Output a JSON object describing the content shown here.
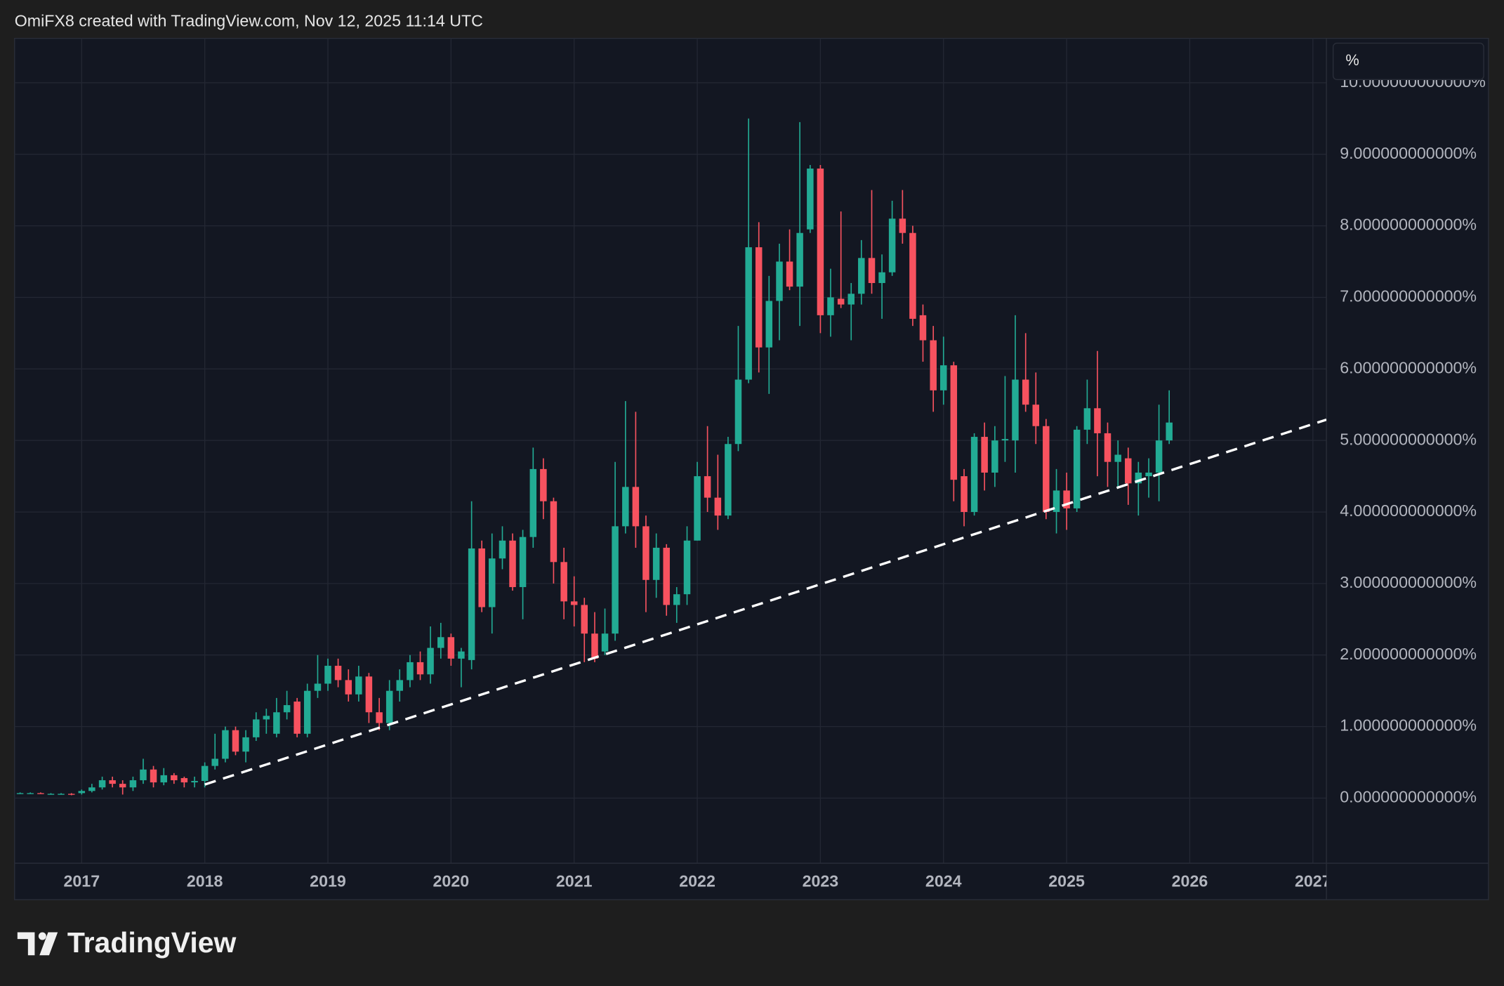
{
  "header": "OmiFX8 created with TradingView.com, Nov 12, 2025 11:14 UTC",
  "scale_button": "%",
  "brand": "TradingView",
  "chart_data": {
    "type": "candlestick",
    "up_color": "#22ab94",
    "down_color": "#f7525f",
    "grid": true,
    "xlim": [
      2016.455,
      2027.11
    ],
    "xticks": [
      2017,
      2018,
      2019,
      2020,
      2021,
      2022,
      2023,
      2024,
      2025,
      2026,
      2027
    ],
    "ylim": [
      -0.91,
      10.62
    ],
    "yticks": [
      {
        "value": 0,
        "label": "0.000000000000%"
      },
      {
        "value": 1,
        "label": "1.000000000000%"
      },
      {
        "value": 2,
        "label": "2.000000000000%"
      },
      {
        "value": 3,
        "label": "3.000000000000%"
      },
      {
        "value": 4,
        "label": "4.000000000000%"
      },
      {
        "value": 5,
        "label": "5.000000000000%"
      },
      {
        "value": 6,
        "label": "6.000000000000%"
      },
      {
        "value": 7,
        "label": "7.000000000000%"
      },
      {
        "value": 8,
        "label": "8.000000000000%"
      },
      {
        "value": 9,
        "label": "9.000000000000%"
      },
      {
        "value": 10,
        "label": "10.000000000000%"
      }
    ],
    "x": [
      2016.5,
      2016.583,
      2016.667,
      2016.75,
      2016.833,
      2016.917,
      2017.0,
      2017.083,
      2017.167,
      2017.25,
      2017.333,
      2017.417,
      2017.5,
      2017.583,
      2017.667,
      2017.75,
      2017.833,
      2017.917,
      2018.0,
      2018.083,
      2018.167,
      2018.25,
      2018.333,
      2018.417,
      2018.5,
      2018.583,
      2018.667,
      2018.75,
      2018.833,
      2018.917,
      2019.0,
      2019.083,
      2019.167,
      2019.25,
      2019.333,
      2019.417,
      2019.5,
      2019.583,
      2019.667,
      2019.75,
      2019.833,
      2019.917,
      2020.0,
      2020.083,
      2020.167,
      2020.25,
      2020.333,
      2020.417,
      2020.5,
      2020.583,
      2020.667,
      2020.75,
      2020.833,
      2020.917,
      2021.0,
      2021.083,
      2021.167,
      2021.25,
      2021.333,
      2021.417,
      2021.5,
      2021.583,
      2021.667,
      2021.75,
      2021.833,
      2021.917,
      2022.0,
      2022.083,
      2022.167,
      2022.25,
      2022.333,
      2022.417,
      2022.5,
      2022.583,
      2022.667,
      2022.75,
      2022.833,
      2022.917,
      2023.0,
      2023.083,
      2023.167,
      2023.25,
      2023.333,
      2023.417,
      2023.5,
      2023.583,
      2023.667,
      2023.75,
      2023.833,
      2023.917,
      2024.0,
      2024.083,
      2024.167,
      2024.25,
      2024.333,
      2024.417,
      2024.5,
      2024.583,
      2024.667,
      2024.75,
      2024.833,
      2024.917,
      2025.0,
      2025.083,
      2025.167,
      2025.25,
      2025.333,
      2025.417,
      2025.5,
      2025.583,
      2025.667,
      2025.75,
      2025.833
    ],
    "open": [
      0.07,
      0.07,
      0.07,
      0.06,
      0.06,
      0.06,
      0.07,
      0.1,
      0.15,
      0.25,
      0.2,
      0.15,
      0.25,
      0.4,
      0.22,
      0.32,
      0.28,
      0.22,
      0.24,
      0.45,
      0.55,
      0.95,
      0.65,
      0.85,
      1.1,
      0.9,
      1.2,
      1.35,
      0.9,
      1.5,
      1.6,
      1.85,
      1.65,
      1.45,
      1.7,
      1.2,
      1.05,
      1.5,
      1.65,
      1.9,
      1.73,
      2.1,
      2.25,
      1.95,
      1.93,
      3.49,
      2.67,
      3.35,
      3.6,
      2.95,
      3.65,
      4.6,
      4.15,
      3.3,
      2.75,
      2.7,
      2.3,
      2.05,
      2.3,
      3.8,
      4.35,
      3.8,
      3.05,
      3.5,
      2.7,
      2.85,
      3.6,
      4.5,
      4.2,
      3.95,
      4.95,
      5.85,
      7.7,
      6.3,
      6.95,
      7.5,
      7.15,
      7.95,
      8.8,
      6.75,
      6.98,
      6.9,
      7.05,
      7.55,
      7.2,
      7.35,
      8.1,
      7.9,
      6.75,
      6.4,
      5.7,
      6.05,
      4.5,
      4.0,
      5.05,
      4.55,
      5.0,
      5.0,
      5.85,
      5.5,
      5.2,
      4.0,
      4.3,
      4.05,
      5.15,
      5.45,
      5.1,
      4.7,
      4.75,
      4.4,
      4.5,
      4.55,
      5.0
    ],
    "high": [
      0.08,
      0.08,
      0.08,
      0.07,
      0.07,
      0.07,
      0.12,
      0.2,
      0.3,
      0.3,
      0.25,
      0.3,
      0.55,
      0.45,
      0.42,
      0.35,
      0.3,
      0.3,
      0.5,
      0.9,
      1.0,
      1.0,
      0.95,
      1.2,
      1.25,
      1.4,
      1.5,
      1.4,
      1.6,
      2.0,
      1.95,
      1.95,
      1.8,
      1.85,
      1.75,
      1.4,
      1.65,
      1.8,
      2.0,
      2.05,
      2.4,
      2.45,
      2.3,
      2.1,
      4.15,
      3.6,
      3.7,
      3.8,
      3.7,
      3.75,
      4.9,
      4.75,
      4.2,
      3.5,
      3.1,
      2.8,
      2.6,
      2.65,
      4.7,
      5.55,
      5.4,
      3.95,
      3.7,
      3.55,
      2.95,
      3.8,
      4.7,
      5.2,
      4.8,
      5.05,
      6.6,
      9.5,
      8.05,
      7.3,
      7.75,
      7.95,
      9.45,
      8.85,
      8.85,
      7.4,
      8.2,
      7.2,
      7.8,
      8.5,
      7.6,
      8.35,
      8.5,
      8.0,
      6.9,
      6.6,
      6.45,
      6.1,
      4.6,
      5.1,
      5.25,
      5.2,
      5.9,
      6.75,
      6.5,
      5.95,
      5.3,
      4.6,
      4.55,
      5.2,
      5.85,
      6.25,
      5.25,
      5.0,
      4.9,
      4.7,
      4.75,
      5.5,
      5.7
    ],
    "low": [
      0.06,
      0.06,
      0.06,
      0.05,
      0.05,
      0.04,
      0.05,
      0.08,
      0.12,
      0.15,
      0.05,
      0.1,
      0.2,
      0.15,
      0.18,
      0.2,
      0.15,
      0.15,
      0.15,
      0.4,
      0.5,
      0.6,
      0.5,
      0.8,
      0.9,
      0.85,
      1.1,
      0.85,
      0.85,
      1.4,
      1.5,
      1.55,
      1.35,
      1.35,
      1.05,
      0.95,
      0.95,
      1.35,
      1.55,
      1.65,
      1.6,
      1.95,
      1.85,
      1.55,
      1.8,
      2.6,
      2.3,
      3.2,
      2.9,
      2.5,
      3.5,
      3.9,
      3.0,
      2.5,
      2.4,
      1.9,
      1.9,
      2.0,
      2.2,
      3.7,
      3.5,
      2.6,
      2.8,
      2.55,
      2.45,
      2.7,
      3.6,
      4.0,
      3.75,
      3.9,
      4.85,
      5.8,
      5.95,
      5.65,
      6.4,
      7.1,
      6.6,
      7.9,
      6.5,
      6.45,
      6.85,
      6.4,
      6.9,
      7.05,
      6.7,
      7.3,
      7.75,
      6.6,
      6.1,
      5.4,
      5.5,
      4.15,
      3.8,
      3.95,
      4.3,
      4.35,
      4.7,
      4.55,
      5.4,
      4.95,
      3.9,
      3.7,
      3.75,
      4.0,
      4.95,
      4.5,
      4.35,
      4.35,
      4.1,
      3.95,
      4.2,
      4.15,
      4.95
    ],
    "close": [
      0.07,
      0.07,
      0.06,
      0.06,
      0.06,
      0.05,
      0.1,
      0.15,
      0.25,
      0.2,
      0.15,
      0.25,
      0.4,
      0.22,
      0.32,
      0.25,
      0.22,
      0.24,
      0.45,
      0.55,
      0.95,
      0.65,
      0.85,
      1.1,
      1.15,
      1.2,
      1.3,
      0.9,
      1.5,
      1.6,
      1.85,
      1.65,
      1.45,
      1.7,
      1.2,
      1.05,
      1.5,
      1.65,
      1.9,
      1.73,
      2.1,
      2.25,
      1.95,
      2.05,
      3.49,
      2.67,
      3.35,
      3.6,
      2.95,
      3.65,
      4.6,
      4.15,
      3.3,
      2.75,
      2.7,
      2.3,
      1.95,
      2.3,
      3.8,
      4.35,
      3.8,
      3.05,
      3.5,
      2.7,
      2.85,
      3.6,
      4.5,
      4.2,
      3.95,
      4.95,
      5.85,
      7.7,
      6.3,
      6.95,
      7.5,
      7.15,
      7.9,
      8.8,
      6.75,
      7.0,
      6.9,
      7.05,
      7.55,
      7.2,
      7.35,
      8.1,
      7.9,
      6.7,
      6.4,
      5.7,
      6.05,
      4.45,
      4.0,
      5.05,
      4.55,
      5.0,
      5.02,
      5.85,
      5.5,
      5.2,
      4.0,
      4.3,
      4.05,
      5.15,
      5.45,
      5.1,
      4.7,
      4.8,
      4.4,
      4.55,
      4.55,
      5.0,
      5.25
    ],
    "trendline": {
      "x": [
        2018.0,
        2027.11
      ],
      "y": [
        0.19,
        5.29
      ],
      "color": "#ffffff"
    }
  }
}
